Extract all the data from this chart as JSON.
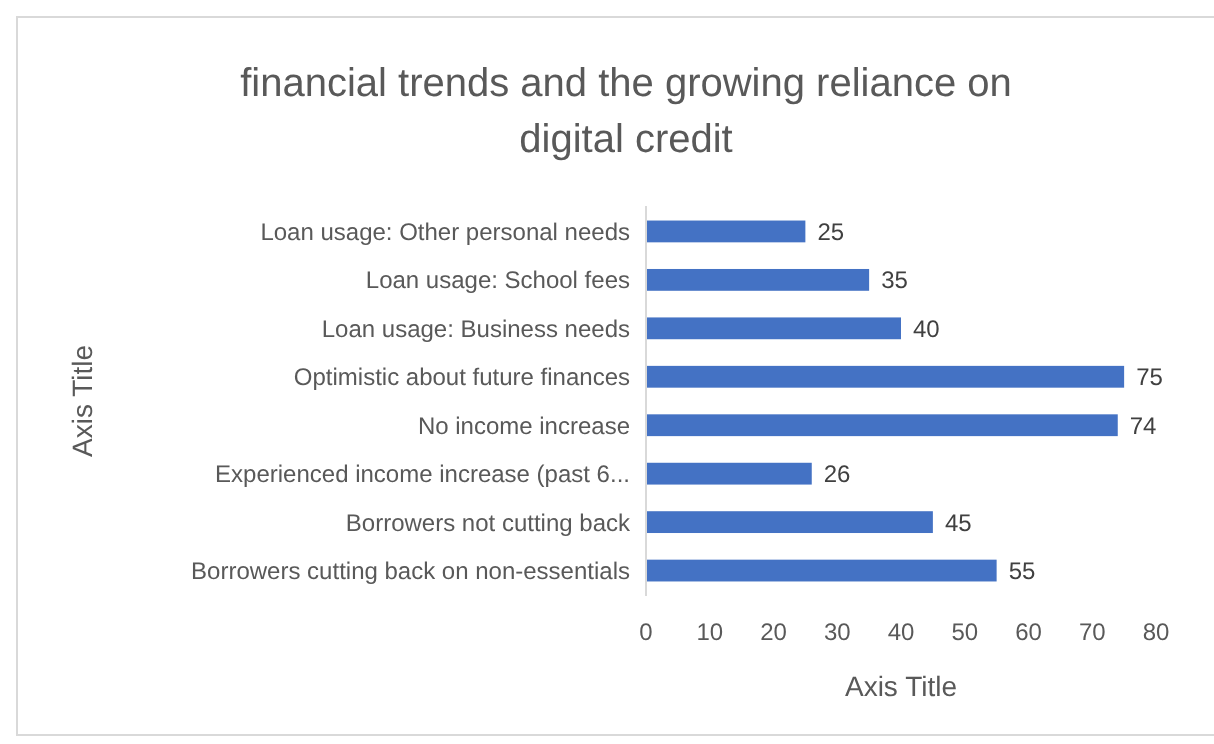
{
  "chart_data": {
    "type": "bar",
    "orientation": "horizontal",
    "title": "financial trends and the growing reliance on digital credit",
    "xlabel": "Axis Title",
    "ylabel": "Axis Title",
    "categories": [
      "Loan usage: Other personal needs",
      "Loan usage: School fees",
      "Loan usage: Business needs",
      "Optimistic about future finances",
      "No income increase",
      "Experienced income increase (past 6...",
      "Borrowers not cutting back",
      "Borrowers cutting back on non-essentials"
    ],
    "values": [
      25,
      35,
      40,
      75,
      74,
      26,
      45,
      55
    ],
    "color": "#4472c4",
    "data_labels": true,
    "xlim": [
      0,
      80
    ],
    "xticks": [
      0,
      10,
      20,
      30,
      40,
      50,
      60,
      70,
      80
    ]
  }
}
